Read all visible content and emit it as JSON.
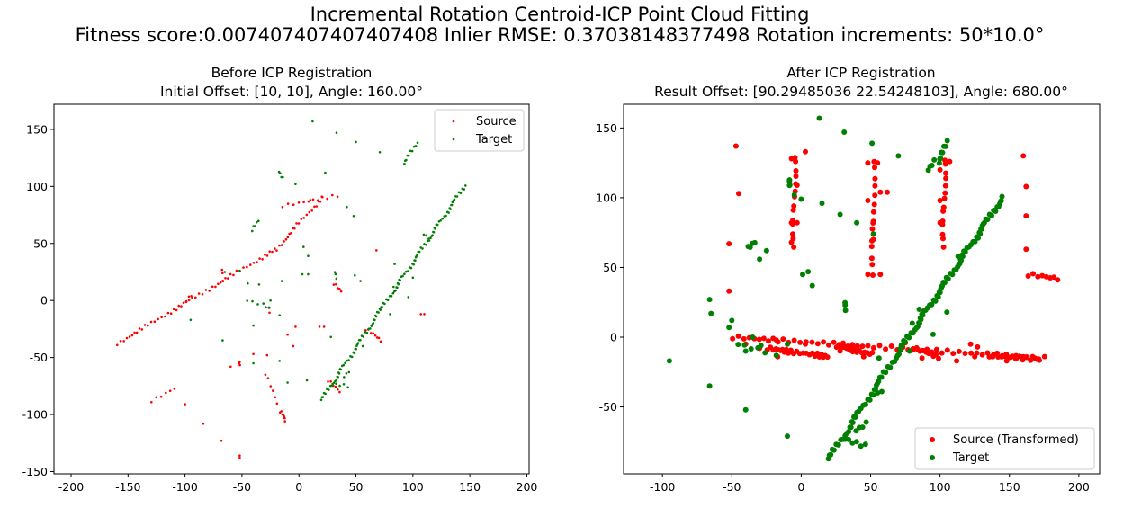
{
  "suptitle_line1": "Incremental Rotation Centroid-ICP Point Cloud Fitting",
  "suptitle_line2": "Fitness score:0.007407407407407408   Inlier RMSE: 0.37038148377498  Rotation increments: 50*10.0°",
  "colors": {
    "source": "#ff0000",
    "target": "#008000"
  },
  "chart_data": [
    {
      "type": "scatter",
      "title_line1": "Before ICP Registration",
      "title_line2": "Initial Offset: [10, 10], Angle: 160.00°",
      "xlim": [
        -215,
        202
      ],
      "ylim": [
        -152,
        172
      ],
      "xticks": [
        -200,
        -150,
        -100,
        -50,
        0,
        50,
        100,
        150,
        200
      ],
      "yticks": [
        -150,
        -100,
        -50,
        0,
        50,
        100,
        150
      ],
      "legend_position": "upper-right",
      "series": [
        {
          "name": "Source",
          "color": "#ff0000",
          "segments": [
            {
              "from": [
                -160,
                -38
              ],
              "to": [
                -20,
                45
              ],
              "n": 55
            },
            {
              "from": [
                -20,
                45
              ],
              "to": [
                20,
                90
              ],
              "n": 22
            },
            {
              "from": [
                -15,
                83
              ],
              "to": [
                35,
                92
              ],
              "n": 12
            },
            {
              "from": [
                -68,
                28
              ],
              "to": [
                -68,
                18
              ],
              "n": 3
            },
            {
              "from": [
                -130,
                -88
              ],
              "to": [
                -110,
                -77
              ],
              "n": 6
            },
            {
              "from": [
                -53,
                -54
              ],
              "to": [
                -53,
                -56
              ],
              "n": 3
            },
            {
              "from": [
                -17,
                -97
              ],
              "to": [
                -12,
                -105
              ],
              "n": 8
            },
            {
              "from": [
                -30,
                -64
              ],
              "to": [
                -20,
                -90
              ],
              "n": 6
            },
            {
              "from": [
                -27,
                -5
              ],
              "to": [
                -27,
                -10
              ],
              "n": 3
            },
            {
              "from": [
                25,
                -70
              ],
              "to": [
                35,
                -80
              ],
              "n": 6
            },
            {
              "from": [
                30,
                15
              ],
              "to": [
                36,
                8
              ],
              "n": 5
            },
            {
              "from": [
                58,
                -25
              ],
              "to": [
                72,
                -35
              ],
              "n": 8
            },
            {
              "from": [
                -95,
                5
              ],
              "to": [
                -100,
                0
              ],
              "n": 3
            }
          ],
          "points": [
            [
              -100,
              -91
            ],
            [
              -84,
              -108
            ],
            [
              -68,
              -123
            ],
            [
              -52,
              -138
            ],
            [
              -52,
              -136
            ],
            [
              68,
              44
            ],
            [
              110,
              -12
            ],
            [
              107,
              -12
            ],
            [
              -60,
              -58
            ],
            [
              -40,
              -47
            ],
            [
              -10,
              -30
            ],
            [
              -5,
              -40
            ],
            [
              -3,
              -23
            ],
            [
              22,
              -23
            ],
            [
              18,
              -23
            ],
            [
              -28,
              -48
            ],
            [
              10,
              88
            ]
          ]
        },
        {
          "name": "Target",
          "color": "#008000",
          "segments": [
            {
              "from": [
                20,
                -87
              ],
              "to": [
                72,
                -8
              ],
              "n": 50
            },
            {
              "from": [
                72,
                -8
              ],
              "to": [
                145,
                100
              ],
              "n": 70
            },
            {
              "from": [
                -17,
                113
              ],
              "to": [
                -13,
                107
              ],
              "n": 4
            },
            {
              "from": [
                -35,
                70
              ],
              "to": [
                -40,
                62
              ],
              "n": 5
            },
            {
              "from": [
                -45,
                0
              ],
              "to": [
                -25,
                -5
              ],
              "n": 5
            },
            {
              "from": [
                30,
                -73
              ],
              "to": [
                44,
                -75
              ],
              "n": 5
            },
            {
              "from": [
                40,
                -67
              ],
              "to": [
                45,
                -62
              ],
              "n": 3
            },
            {
              "from": [
                32,
                25
              ],
              "to": [
                34,
                20
              ],
              "n": 3
            },
            {
              "from": [
                93,
                120
              ],
              "to": [
                103,
                138
              ],
              "n": 10
            },
            {
              "from": [
                110,
                58
              ],
              "to": [
                115,
                55
              ],
              "n": 3
            }
          ],
          "points": [
            [
              12,
              157
            ],
            [
              33,
              147
            ],
            [
              50,
              139
            ],
            [
              71,
              130
            ],
            [
              -3,
              102
            ],
            [
              -65,
              25
            ],
            [
              -95,
              -17
            ],
            [
              -67,
              -35
            ],
            [
              -40,
              -55
            ],
            [
              -10,
              -72
            ],
            [
              -29,
              -6
            ],
            [
              -17,
              -13
            ],
            [
              7,
              -70
            ],
            [
              -17,
              -53
            ],
            [
              -45,
              15
            ],
            [
              -40,
              -22
            ],
            [
              -25,
              0
            ],
            [
              8,
              23
            ],
            [
              8,
              39
            ],
            [
              28,
              -32
            ],
            [
              4,
              47
            ],
            [
              3,
              23
            ],
            [
              -15,
              17
            ],
            [
              -35,
              14
            ],
            [
              -52,
              26
            ],
            [
              23,
              112
            ],
            [
              42,
              82
            ],
            [
              48,
              74
            ],
            [
              56,
              -40
            ],
            [
              80,
              -12
            ],
            [
              83,
              12
            ],
            [
              84,
              32
            ],
            [
              96,
              3
            ],
            [
              100,
              20
            ],
            [
              54,
              17
            ],
            [
              49,
              22
            ]
          ]
        }
      ]
    },
    {
      "type": "scatter",
      "title_line1": "After ICP Registration",
      "title_line2": "Result Offset: [90.29485036 22.54248103], Angle: 680.00°",
      "xlim": [
        -128,
        215
      ],
      "ylim": [
        -98,
        167
      ],
      "xticks": [
        -100,
        -50,
        0,
        50,
        100,
        150,
        200
      ],
      "yticks": [
        -50,
        0,
        50,
        100,
        150
      ],
      "legend_position": "lower-right",
      "series": [
        {
          "name": "Source (Transformed)",
          "color": "#ff0000",
          "segments": [
            {
              "from": [
                -50,
                0
              ],
              "to": [
                175,
                -15
              ],
              "n": 60
            },
            {
              "from": [
                -25,
                -8
              ],
              "to": [
                20,
                -14
              ],
              "n": 25
            },
            {
              "from": [
                25,
                -6
              ],
              "to": [
                50,
                -12
              ],
              "n": 18
            },
            {
              "from": [
                80,
                -8
              ],
              "to": [
                100,
                -14
              ],
              "n": 10
            },
            {
              "from": [
                135,
                -13
              ],
              "to": [
                172,
                -16
              ],
              "n": 14
            },
            {
              "from": [
                -5,
                130
              ],
              "to": [
                -5,
                65
              ],
              "n": 14
            },
            {
              "from": [
                52,
                127
              ],
              "to": [
                52,
                45
              ],
              "n": 14
            },
            {
              "from": [
                103,
                128
              ],
              "to": [
                103,
                65
              ],
              "n": 14
            },
            {
              "from": [
                163,
                45
              ],
              "to": [
                185,
                42
              ],
              "n": 8
            }
          ],
          "points": [
            [
              -47,
              137
            ],
            [
              -45,
              103
            ],
            [
              -52,
              67
            ],
            [
              -52,
              33
            ],
            [
              -7,
              128
            ],
            [
              -3,
              109
            ],
            [
              3,
              133
            ],
            [
              -7,
              82
            ],
            [
              -3,
              82
            ],
            [
              -7,
              68
            ],
            [
              48,
              125
            ],
            [
              55,
              125
            ],
            [
              57,
              104
            ],
            [
              62,
              104
            ],
            [
              48,
              98
            ],
            [
              52,
              83
            ],
            [
              52,
              70
            ],
            [
              48,
              45
            ],
            [
              57,
              45
            ],
            [
              100,
              120
            ],
            [
              100,
              98
            ],
            [
              100,
              82
            ],
            [
              107,
              126
            ],
            [
              160,
              130
            ],
            [
              162,
              108
            ],
            [
              162,
              87
            ],
            [
              162,
              63
            ],
            [
              155,
              -15
            ],
            [
              148,
              -17
            ],
            [
              127,
              -7
            ],
            [
              122,
              -5
            ],
            [
              -18,
              -2
            ],
            [
              -17,
              -14
            ],
            [
              3,
              -5
            ],
            [
              12,
              -12
            ],
            [
              28,
              -10
            ],
            [
              40,
              -9
            ],
            [
              45,
              -14
            ],
            [
              75,
              -4
            ],
            [
              87,
              -15
            ],
            [
              112,
              -17
            ],
            [
              125,
              -14
            ],
            [
              138,
              -14
            ],
            [
              160,
              -14
            ],
            [
              170,
              -16
            ],
            [
              -40,
              -5
            ],
            [
              -30,
              -8
            ]
          ]
        },
        {
          "name": "Target",
          "color": "#008000",
          "segments": [
            {
              "from": [
                20,
                -87
              ],
              "to": [
                72,
                -8
              ],
              "n": 45
            },
            {
              "from": [
                72,
                -8
              ],
              "to": [
                145,
                100
              ],
              "n": 75
            },
            {
              "from": [
                32,
                -73
              ],
              "to": [
                47,
                -78
              ],
              "n": 6
            },
            {
              "from": [
                40,
                -67
              ],
              "to": [
                48,
                -62
              ],
              "n": 4
            },
            {
              "from": [
                -8,
                113
              ],
              "to": [
                -7,
                108
              ],
              "n": 4
            },
            {
              "from": [
                -33,
                68
              ],
              "to": [
                -37,
                64
              ],
              "n": 4
            },
            {
              "from": [
                32,
                25
              ],
              "to": [
                33,
                20
              ],
              "n": 3
            },
            {
              "from": [
                100,
                125
              ],
              "to": [
                105,
                140
              ],
              "n": 8
            },
            {
              "from": [
                92,
                120
              ],
              "to": [
                97,
                126
              ],
              "n": 4
            },
            {
              "from": [
                -45,
                -5
              ],
              "to": [
                -25,
                -10
              ],
              "n": 5
            }
          ],
          "points": [
            [
              13,
              157
            ],
            [
              31,
              147
            ],
            [
              51,
              139
            ],
            [
              70,
              130
            ],
            [
              -5,
              102
            ],
            [
              0,
              99
            ],
            [
              15,
              96
            ],
            [
              28,
              88
            ],
            [
              40,
              82
            ],
            [
              52,
              74
            ],
            [
              -66,
              27
            ],
            [
              -65,
              17
            ],
            [
              -95,
              -17
            ],
            [
              -66,
              -35
            ],
            [
              -40,
              -52
            ],
            [
              -10,
              -71
            ],
            [
              -18,
              -13
            ],
            [
              -29,
              -6
            ],
            [
              -10,
              -5
            ],
            [
              -30,
              56
            ],
            [
              -25,
              62
            ],
            [
              8,
              37
            ],
            [
              1,
              45
            ],
            [
              5,
              47
            ],
            [
              -52,
              7
            ],
            [
              -50,
              12
            ],
            [
              55,
              -40
            ],
            [
              58,
              -39
            ],
            [
              56,
              -15
            ],
            [
              78,
              -10
            ],
            [
              80,
              10
            ],
            [
              85,
              20
            ],
            [
              95,
              2
            ],
            [
              105,
              18
            ],
            [
              115,
              57
            ],
            [
              113,
              58
            ],
            [
              -40,
              -10
            ],
            [
              -35,
              0
            ]
          ]
        }
      ]
    }
  ]
}
